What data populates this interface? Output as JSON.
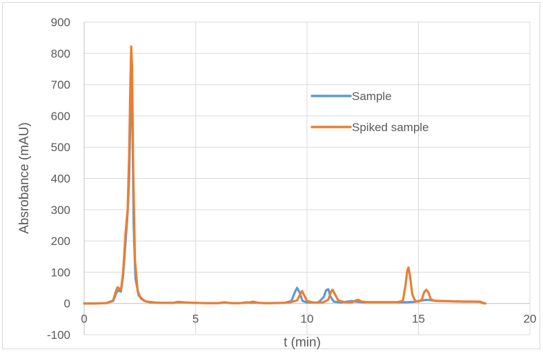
{
  "chart_data": {
    "type": "line",
    "title": "",
    "xlabel": "t (min)",
    "ylabel": "Absrobance (mAU)",
    "xlim": [
      0,
      20
    ],
    "ylim": [
      -100,
      900
    ],
    "xticks": [
      0,
      5,
      10,
      15,
      20
    ],
    "yticks": [
      -100,
      0,
      100,
      200,
      300,
      400,
      500,
      600,
      700,
      800,
      900
    ],
    "grid": true,
    "legend_position": "upper-right-inside",
    "series": [
      {
        "name": "Sample",
        "color": "#5b9bd5",
        "points": [
          [
            0,
            0
          ],
          [
            0.5,
            0
          ],
          [
            1.0,
            1
          ],
          [
            1.3,
            8
          ],
          [
            1.45,
            35
          ],
          [
            1.55,
            42
          ],
          [
            1.65,
            38
          ],
          [
            1.75,
            90
          ],
          [
            1.85,
            190
          ],
          [
            1.95,
            290
          ],
          [
            2.02,
            400
          ],
          [
            2.08,
            620
          ],
          [
            2.12,
            680
          ],
          [
            2.17,
            560
          ],
          [
            2.22,
            250
          ],
          [
            2.3,
            80
          ],
          [
            2.45,
            25
          ],
          [
            2.7,
            8
          ],
          [
            3.0,
            3
          ],
          [
            3.5,
            2
          ],
          [
            4.0,
            2
          ],
          [
            4.2,
            4
          ],
          [
            4.6,
            3
          ],
          [
            5.0,
            2
          ],
          [
            5.5,
            1
          ],
          [
            6.0,
            1
          ],
          [
            6.3,
            3
          ],
          [
            6.6,
            1
          ],
          [
            7.0,
            1
          ],
          [
            7.3,
            4
          ],
          [
            7.5,
            2
          ],
          [
            7.7,
            3
          ],
          [
            8.0,
            1
          ],
          [
            8.5,
            1
          ],
          [
            9.0,
            2
          ],
          [
            9.3,
            8
          ],
          [
            9.45,
            35
          ],
          [
            9.55,
            50
          ],
          [
            9.65,
            38
          ],
          [
            9.8,
            8
          ],
          [
            10.0,
            3
          ],
          [
            10.5,
            3
          ],
          [
            10.75,
            20
          ],
          [
            10.85,
            42
          ],
          [
            10.95,
            46
          ],
          [
            11.05,
            22
          ],
          [
            11.2,
            6
          ],
          [
            11.5,
            3
          ],
          [
            11.8,
            6
          ],
          [
            12.0,
            8
          ],
          [
            12.2,
            6
          ],
          [
            12.5,
            4
          ],
          [
            13.0,
            4
          ],
          [
            13.5,
            4
          ],
          [
            14.0,
            4
          ],
          [
            14.5,
            4
          ],
          [
            14.8,
            5
          ],
          [
            15.0,
            8
          ],
          [
            15.2,
            10
          ],
          [
            15.4,
            12
          ],
          [
            15.6,
            10
          ],
          [
            15.8,
            8
          ],
          [
            16.5,
            7
          ],
          [
            17.0,
            6
          ],
          [
            17.5,
            6
          ],
          [
            17.8,
            5
          ],
          [
            17.9,
            2
          ],
          [
            18.0,
            0
          ]
        ]
      },
      {
        "name": "Spiked sample",
        "color": "#ed7d31",
        "points": [
          [
            0,
            0
          ],
          [
            0.5,
            0
          ],
          [
            1.0,
            1
          ],
          [
            1.3,
            10
          ],
          [
            1.42,
            38
          ],
          [
            1.5,
            52
          ],
          [
            1.58,
            48
          ],
          [
            1.65,
            42
          ],
          [
            1.75,
            100
          ],
          [
            1.85,
            220
          ],
          [
            1.95,
            300
          ],
          [
            2.02,
            480
          ],
          [
            2.07,
            700
          ],
          [
            2.11,
            822
          ],
          [
            2.15,
            760
          ],
          [
            2.2,
            430
          ],
          [
            2.28,
            140
          ],
          [
            2.4,
            40
          ],
          [
            2.55,
            15
          ],
          [
            2.8,
            6
          ],
          [
            3.2,
            3
          ],
          [
            3.6,
            2
          ],
          [
            4.0,
            2
          ],
          [
            4.2,
            5
          ],
          [
            4.6,
            3
          ],
          [
            5.0,
            2
          ],
          [
            5.5,
            1
          ],
          [
            6.0,
            1
          ],
          [
            6.3,
            4
          ],
          [
            6.6,
            1
          ],
          [
            7.0,
            1
          ],
          [
            7.4,
            3
          ],
          [
            7.6,
            6
          ],
          [
            7.8,
            2
          ],
          [
            8.2,
            1
          ],
          [
            8.8,
            2
          ],
          [
            9.2,
            3
          ],
          [
            9.55,
            10
          ],
          [
            9.7,
            30
          ],
          [
            9.78,
            40
          ],
          [
            9.88,
            25
          ],
          [
            10.0,
            8
          ],
          [
            10.3,
            3
          ],
          [
            10.7,
            3
          ],
          [
            10.95,
            12
          ],
          [
            11.08,
            38
          ],
          [
            11.15,
            44
          ],
          [
            11.25,
            30
          ],
          [
            11.4,
            10
          ],
          [
            11.7,
            4
          ],
          [
            12.0,
            3
          ],
          [
            12.2,
            10
          ],
          [
            12.3,
            12
          ],
          [
            12.45,
            6
          ],
          [
            12.8,
            4
          ],
          [
            13.5,
            4
          ],
          [
            14.0,
            4
          ],
          [
            14.3,
            8
          ],
          [
            14.42,
            60
          ],
          [
            14.5,
            105
          ],
          [
            14.55,
            115
          ],
          [
            14.62,
            90
          ],
          [
            14.72,
            30
          ],
          [
            14.85,
            8
          ],
          [
            15.0,
            6
          ],
          [
            15.15,
            12
          ],
          [
            15.25,
            35
          ],
          [
            15.35,
            44
          ],
          [
            15.45,
            35
          ],
          [
            15.55,
            14
          ],
          [
            15.7,
            9
          ],
          [
            16.0,
            8
          ],
          [
            16.5,
            7
          ],
          [
            17.0,
            6
          ],
          [
            17.5,
            6
          ],
          [
            17.75,
            6
          ],
          [
            17.85,
            2
          ],
          [
            18.0,
            0
          ]
        ]
      }
    ]
  }
}
